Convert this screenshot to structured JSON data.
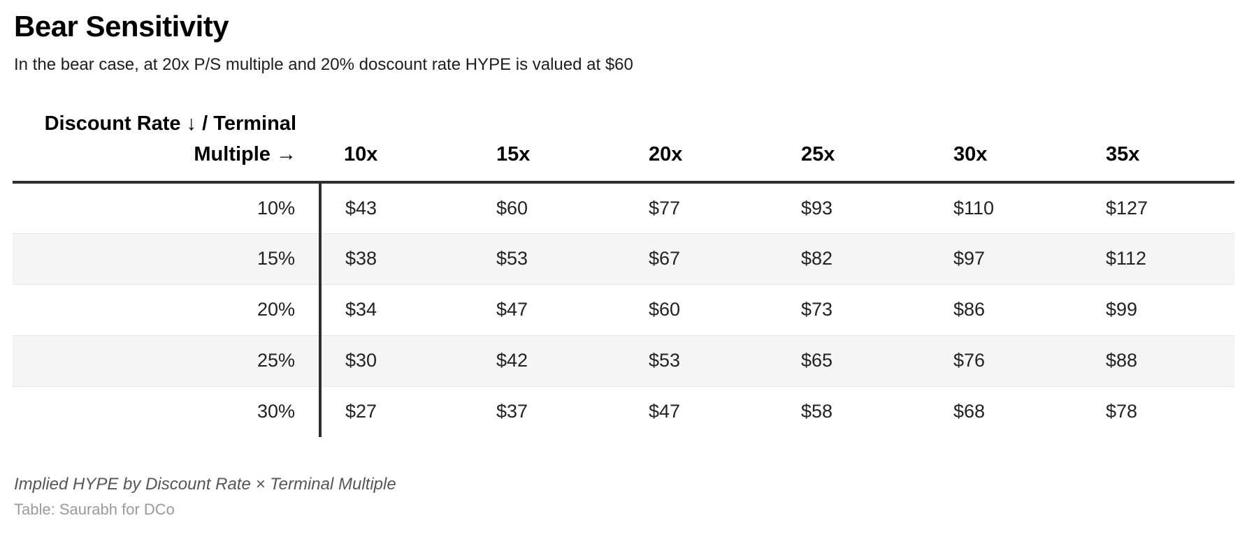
{
  "header": {
    "title": "Bear Sensitivity",
    "subtitle": "In the bear case, at 20x P/S multiple and 20% doscount rate HYPE is valued at $60"
  },
  "table": {
    "corner_label": "Discount Rate ↓ / Terminal Multiple →",
    "column_headers": [
      "10x",
      "15x",
      "20x",
      "25x",
      "30x",
      "35x"
    ],
    "rows": [
      {
        "label": "10%",
        "values": [
          "$43",
          "$60",
          "$77",
          "$93",
          "$110",
          "$127"
        ]
      },
      {
        "label": "15%",
        "values": [
          "$38",
          "$53",
          "$67",
          "$82",
          "$97",
          "$112"
        ]
      },
      {
        "label": "20%",
        "values": [
          "$34",
          "$47",
          "$60",
          "$73",
          "$86",
          "$99"
        ]
      },
      {
        "label": "25%",
        "values": [
          "$30",
          "$42",
          "$53",
          "$65",
          "$76",
          "$88"
        ]
      },
      {
        "label": "30%",
        "values": [
          "$27",
          "$37",
          "$47",
          "$58",
          "$68",
          "$78"
        ]
      }
    ]
  },
  "footer": {
    "note": "Implied HYPE by Discount Rate × Terminal Multiple",
    "credit": "Table: Saurabh for DCo"
  },
  "colors": {
    "text_black": "#000000",
    "cell_text": "#222222",
    "stripe": "#f5f5f5",
    "row_divider": "#e7e7e7",
    "heavy_rule": "#2e2e2e",
    "note_gray": "#565656",
    "credit_gray": "#9a9a9a"
  },
  "chart_data": {
    "type": "table",
    "title": "Bear Sensitivity",
    "subtitle": "In the bear case, at 20x P/S multiple and 20% doscount rate HYPE is valued at $60",
    "row_axis": "Discount Rate",
    "column_axis": "Terminal Multiple",
    "columns": [
      "10x",
      "15x",
      "20x",
      "25x",
      "30x",
      "35x"
    ],
    "row_labels": [
      "10%",
      "15%",
      "20%",
      "25%",
      "30%"
    ],
    "values_usd": [
      [
        43,
        60,
        77,
        93,
        110,
        127
      ],
      [
        38,
        53,
        67,
        82,
        97,
        112
      ],
      [
        34,
        47,
        60,
        73,
        86,
        99
      ],
      [
        30,
        42,
        53,
        65,
        76,
        88
      ],
      [
        27,
        37,
        47,
        58,
        68,
        78
      ]
    ],
    "note": "Implied HYPE by Discount Rate × Terminal Multiple",
    "credit": "Table: Saurabh for DCo",
    "layout_hints": {
      "striped_rows": [
        "15%",
        "25%"
      ],
      "heavy_rule_below_header": true,
      "vertical_rule_after_row_labels": true
    }
  }
}
